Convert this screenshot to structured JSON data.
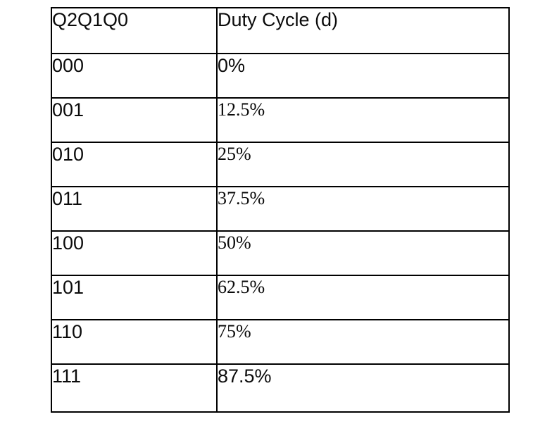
{
  "table": {
    "headers": [
      "Q2Q1Q0",
      "Duty Cycle (d)"
    ],
    "rows": [
      {
        "code": "000",
        "duty": "0%"
      },
      {
        "code": "001",
        "duty": "12.5%"
      },
      {
        "code": "010",
        "duty": "25%"
      },
      {
        "code": "011",
        "duty": "37.5%"
      },
      {
        "code": "100",
        "duty": "50%"
      },
      {
        "code": "101",
        "duty": "62.5%"
      },
      {
        "code": "110",
        "duty": "75%"
      },
      {
        "code": "111",
        "duty": "87.5%"
      }
    ]
  }
}
